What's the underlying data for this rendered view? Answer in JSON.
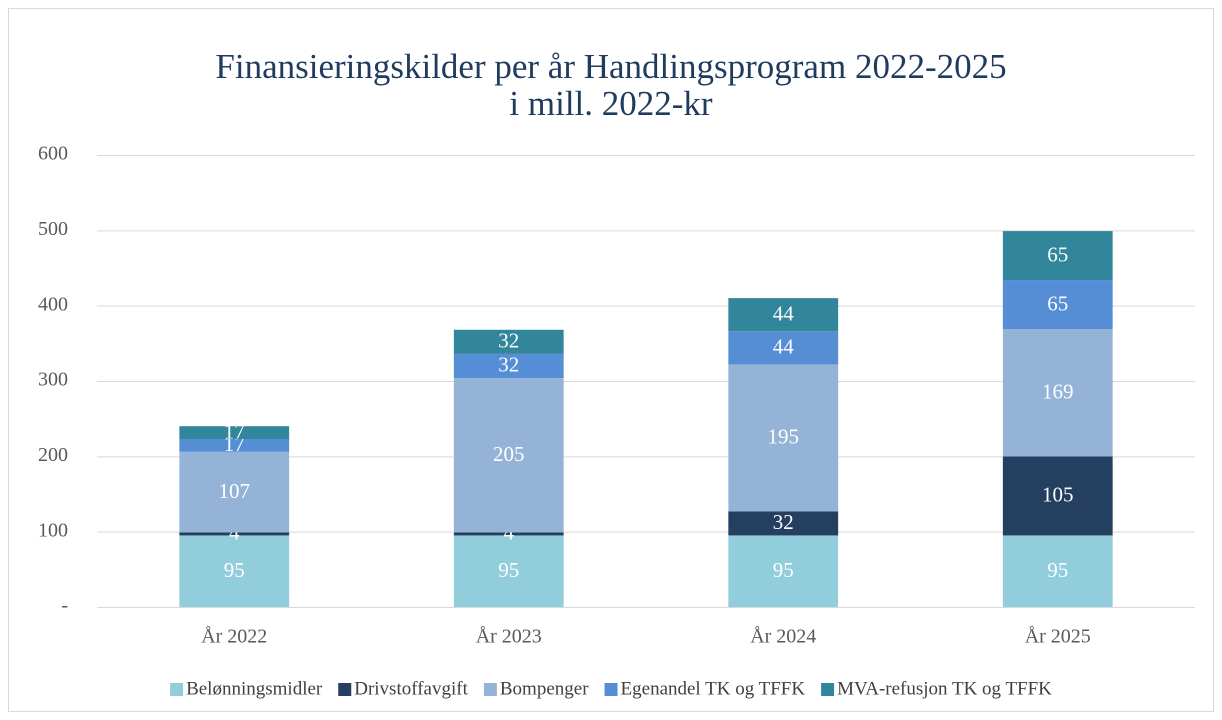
{
  "chart_data": {
    "type": "stacked_bar",
    "title": "Finansieringskilder per år Handlingsprogram 2022-2025",
    "subtitle": "i mill. 2022-kr",
    "categories": [
      "År 2022",
      "År 2023",
      "År 2024",
      "År 2025"
    ],
    "series": [
      {
        "name": "Belønningsmidler",
        "color": "#92cddc",
        "values": [
          95,
          95,
          95,
          95
        ]
      },
      {
        "name": "Drivstoffavgift",
        "color": "#243f60",
        "values": [
          4,
          4,
          32,
          105
        ]
      },
      {
        "name": "Bompenger",
        "color": "#95b3d7",
        "values": [
          107,
          205,
          195,
          169
        ]
      },
      {
        "name": "Egenandel TK og TFFK",
        "color": "#558ed5",
        "values": [
          17,
          32,
          44,
          65
        ]
      },
      {
        "name": "MVA-refusjon TK og TFFK",
        "color": "#31869b",
        "values": [
          17,
          32,
          44,
          65
        ]
      }
    ],
    "ylim": [
      0,
      600
    ],
    "yticks": [
      {
        "value": 0,
        "label": "-"
      },
      100,
      200,
      300,
      400,
      500,
      600
    ],
    "grid": true,
    "legend": "bottom"
  }
}
